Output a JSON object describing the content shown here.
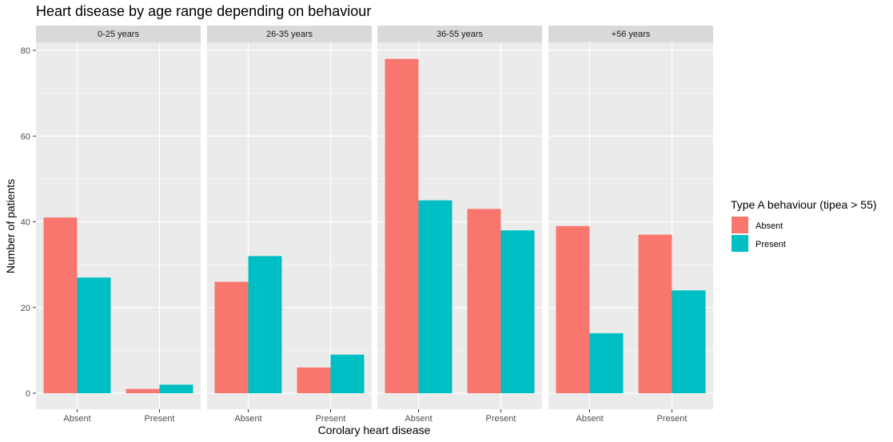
{
  "chart_data": {
    "type": "bar",
    "title": "Heart disease by age range depending on behaviour",
    "xlabel": "Corolary heart disease",
    "ylabel": "Number of patients",
    "ylim": [
      0,
      80
    ],
    "yticks": [
      0,
      20,
      40,
      60,
      80
    ],
    "categories": [
      "Absent",
      "Present"
    ],
    "grid": true,
    "legend": {
      "title": "Type A behaviour (tipea > 55)",
      "position": "right",
      "items": [
        {
          "label": "Absent",
          "color": "#F8766D"
        },
        {
          "label": "Present",
          "color": "#00BFC4"
        }
      ]
    },
    "panels": [
      {
        "facet": "0-25 years",
        "series": [
          {
            "name": "Absent",
            "values": [
              41,
              1
            ]
          },
          {
            "name": "Present",
            "values": [
              27,
              2
            ]
          }
        ]
      },
      {
        "facet": "26-35 years",
        "series": [
          {
            "name": "Absent",
            "values": [
              26,
              6
            ]
          },
          {
            "name": "Present",
            "values": [
              32,
              9
            ]
          }
        ]
      },
      {
        "facet": "36-55 years",
        "series": [
          {
            "name": "Absent",
            "values": [
              78,
              43
            ]
          },
          {
            "name": "Present",
            "values": [
              45,
              38
            ]
          }
        ]
      },
      {
        "facet": "+56 years",
        "series": [
          {
            "name": "Absent",
            "values": [
              39,
              37
            ]
          },
          {
            "name": "Present",
            "values": [
              14,
              24
            ]
          }
        ]
      }
    ]
  }
}
